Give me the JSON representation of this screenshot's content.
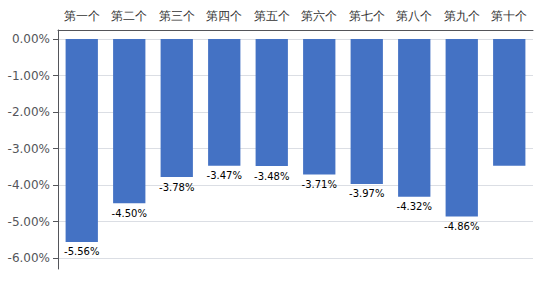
{
  "chart_data": {
    "type": "bar",
    "categories": [
      "第一个",
      "第二个",
      "第三个",
      "第四个",
      "第五个",
      "第六个",
      "第七个",
      "第八个",
      "第九个",
      "第十个"
    ],
    "values": [
      -5.56,
      -4.5,
      -3.78,
      -3.47,
      -3.48,
      -3.71,
      -3.97,
      -4.32,
      -4.86,
      -3.47
    ],
    "value_labels": [
      "-5.56%",
      "-4.50%",
      "-3.78%",
      "-3.47%",
      "-3.48%",
      "-3.71%",
      "-3.97%",
      "-4.32%",
      "-4.86%",
      null
    ],
    "data_labels": true,
    "color": "#4472C4",
    "ylim": [
      -6.3,
      0.25
    ],
    "yticks": [
      {
        "value": 0.0,
        "label": "0.00%"
      },
      {
        "value": -1.0,
        "label": "-1.00%"
      },
      {
        "value": -2.0,
        "label": "-2.00%"
      },
      {
        "value": -3.0,
        "label": "-3.00%"
      },
      {
        "value": -4.0,
        "label": "-4.00%"
      },
      {
        "value": -5.0,
        "label": "-5.00%"
      },
      {
        "value": -6.0,
        "label": "-6.00%"
      }
    ],
    "grid": true
  }
}
